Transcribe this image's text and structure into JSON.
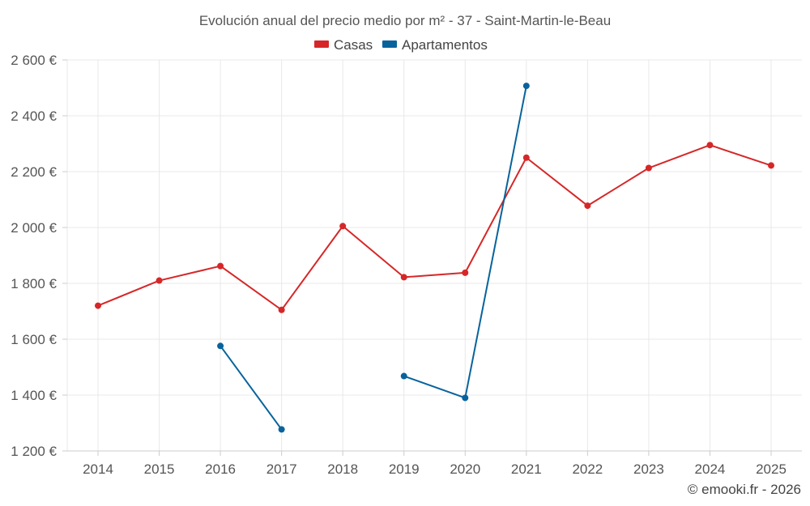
{
  "chart_data": {
    "type": "line",
    "title": "Evolución anual del precio medio por m² - 37 - Saint-Martin-le-Beau",
    "categories": [
      "2014",
      "2015",
      "2016",
      "2017",
      "2018",
      "2019",
      "2020",
      "2021",
      "2022",
      "2023",
      "2024",
      "2025"
    ],
    "series": [
      {
        "name": "Casas",
        "color": "#d62728",
        "values": [
          1720,
          1810,
          1862,
          1705,
          2005,
          1822,
          1838,
          2250,
          2078,
          2213,
          2295,
          2222
        ]
      },
      {
        "name": "Apartamentos",
        "color": "#08639c",
        "values": [
          null,
          null,
          1576,
          1277,
          null,
          1468,
          1390,
          2507,
          null,
          null,
          null,
          null
        ]
      }
    ],
    "ylim": [
      1200,
      2600
    ],
    "yticks": [
      1200,
      1400,
      1600,
      1800,
      2000,
      2200,
      2400,
      2600
    ],
    "ytick_labels": [
      "1 200 €",
      "1 400 €",
      "1 600 €",
      "1 800 €",
      "2 000 €",
      "2 200 €",
      "2 400 €",
      "2 600 €"
    ],
    "xlabel": "",
    "ylabel": "",
    "grid": true,
    "legend_position": "top-center"
  },
  "footer": {
    "copyright": "© emooki.fr - 2026"
  }
}
